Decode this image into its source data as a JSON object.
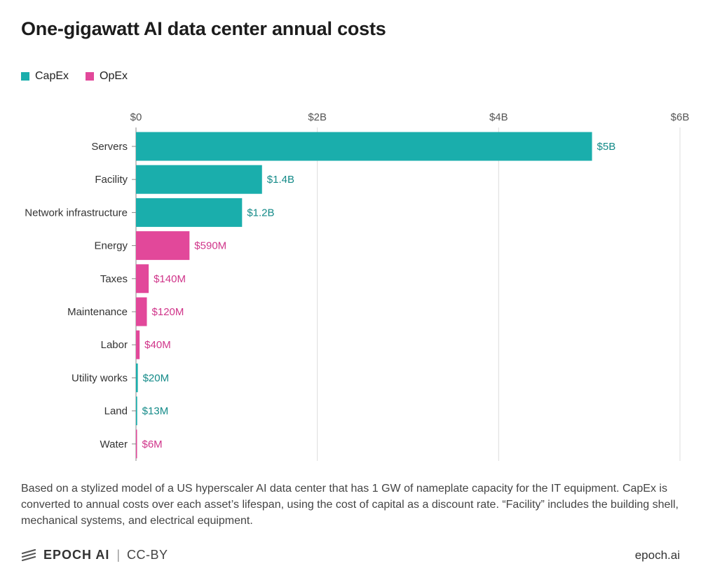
{
  "title": "One-gigawatt AI data center annual costs",
  "legend": [
    {
      "label": "CapEx",
      "color": "#1aaeac"
    },
    {
      "label": "OpEx",
      "color": "#e2489a"
    }
  ],
  "note": "Based on a stylized model of a US hyperscaler AI data center that has 1 GW of nameplate capacity for the IT equipment. CapEx is converted to annual costs over each asset’s lifespan, using the cost of capital as a discount rate. “Facility” includes the building shell, mechanical systems, and electrical equipment.",
  "footer": {
    "brand": "EPOCH AI",
    "separator": "|",
    "license": "CC-BY",
    "site": "epoch.ai"
  },
  "chart_data": {
    "type": "bar",
    "orientation": "horizontal",
    "title": "One-gigawatt AI data center annual costs",
    "xlabel": "",
    "ylabel": "",
    "xlim": [
      0,
      6000000000
    ],
    "ticks": [
      {
        "value": 0,
        "label": "$0"
      },
      {
        "value": 2000000000,
        "label": "$2B"
      },
      {
        "value": 4000000000,
        "label": "$4B"
      },
      {
        "value": 6000000000,
        "label": "$6B"
      }
    ],
    "grid": "vertical",
    "legend_position": "top-left",
    "categories": [
      "Servers",
      "Facility",
      "Network infrastructure",
      "Energy",
      "Taxes",
      "Maintenance",
      "Labor",
      "Utility works",
      "Land",
      "Water"
    ],
    "values": [
      5030000000,
      1390000000,
      1170000000,
      590000000,
      140000000,
      120000000,
      40000000,
      20000000,
      13000000,
      6000000
    ],
    "value_labels": [
      "$5B",
      "$1.4B",
      "$1.2B",
      "$590M",
      "$140M",
      "$120M",
      "$40M",
      "$20M",
      "$13M",
      "$6M"
    ],
    "groups": [
      "CapEx",
      "CapEx",
      "CapEx",
      "OpEx",
      "OpEx",
      "OpEx",
      "OpEx",
      "CapEx",
      "CapEx",
      "OpEx"
    ],
    "colors": {
      "CapEx": "#1aaeac",
      "OpEx": "#e2489a"
    },
    "label_colors": {
      "CapEx": "#138a88",
      "OpEx": "#d0358a"
    }
  }
}
